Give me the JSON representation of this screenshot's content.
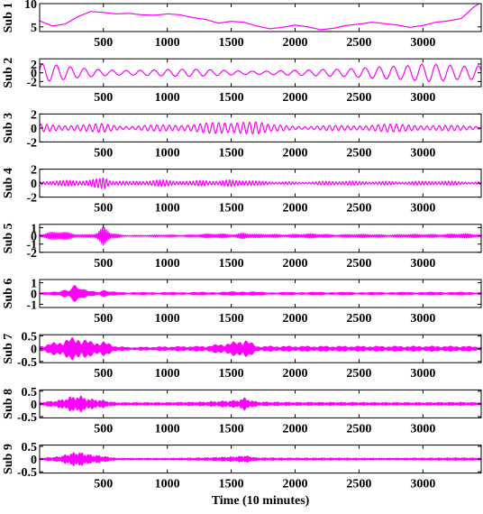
{
  "chart_data": {
    "type": "line",
    "title": "",
    "xlabel": "Time (10 minutes)",
    "line_color": "#ff00ff",
    "grid": false,
    "xlim": [
      1,
      3456
    ],
    "x_ticks": [
      500,
      1000,
      1500,
      2000,
      2500,
      3000
    ],
    "x_tick_labels": [
      "500",
      "1000",
      "1500",
      "2000",
      "2500",
      "3000"
    ],
    "panels": [
      {
        "ylabel": "Sub 1",
        "ylim": [
          4,
          10
        ],
        "y_ticks": [
          5,
          10
        ],
        "y_tick_labels": [
          "5",
          "10"
        ],
        "signal": {
          "kind": "trend",
          "x": [
            1,
            100,
            200,
            300,
            400,
            500,
            600,
            700,
            800,
            900,
            1000,
            1100,
            1200,
            1300,
            1400,
            1500,
            1600,
            1700,
            1800,
            1900,
            2000,
            2100,
            2200,
            2300,
            2400,
            2500,
            2600,
            2700,
            2800,
            2900,
            3000,
            3100,
            3200,
            3300,
            3400,
            3456
          ],
          "y": [
            6.3,
            5.2,
            5.6,
            7.2,
            8.3,
            8.1,
            7.8,
            7.9,
            7.6,
            7.5,
            7.8,
            7.6,
            7.0,
            6.6,
            5.8,
            6.2,
            6.0,
            5.2,
            4.6,
            4.9,
            5.4,
            5.0,
            4.4,
            4.7,
            5.3,
            5.6,
            6.0,
            5.7,
            5.4,
            4.9,
            5.3,
            6.0,
            6.3,
            6.8,
            9.3,
            10.3
          ]
        }
      },
      {
        "ylabel": "Sub 2",
        "ylim": [
          -3.2,
          3.2
        ],
        "y_ticks": [
          -2,
          0,
          2
        ],
        "y_tick_labels": [
          "-2",
          "0",
          "2"
        ],
        "signal": {
          "kind": "osc",
          "period": 110,
          "x": [
            1,
            300,
            600,
            900,
            1200,
            1500,
            1800,
            2100,
            2400,
            2700,
            3000,
            3300,
            3456
          ],
          "amp": [
            2.2,
            1.5,
            1.3,
            1.3,
            1.3,
            1.2,
            1.0,
            0.8,
            1.0,
            2.2,
            2.6,
            1.6,
            2.0
          ]
        }
      },
      {
        "ylabel": "Sub 3",
        "ylim": [
          -2,
          2
        ],
        "y_ticks": [
          -2,
          0,
          2
        ],
        "y_tick_labels": [
          "-2",
          "0",
          "2"
        ],
        "signal": {
          "kind": "osc",
          "period": 48,
          "x": [
            1,
            200,
            400,
            500,
            700,
            1000,
            1300,
            1500,
            1600,
            1700,
            1800,
            2100,
            2400,
            2700,
            3000,
            3300,
            3456
          ],
          "amp": [
            0.6,
            0.5,
            0.6,
            0.9,
            0.6,
            0.7,
            0.8,
            0.8,
            1.4,
            1.3,
            0.6,
            0.6,
            0.5,
            0.6,
            0.5,
            0.5,
            0.6
          ]
        }
      },
      {
        "ylabel": "Sub 4",
        "ylim": [
          -2,
          2
        ],
        "y_ticks": [
          -2,
          0,
          2
        ],
        "y_tick_labels": [
          "-2",
          "0",
          "2"
        ],
        "signal": {
          "kind": "osc",
          "period": 26,
          "x": [
            1,
            200,
            380,
            470,
            510,
            560,
            700,
            1000,
            1200,
            1300,
            1400,
            1500,
            1700,
            2000,
            2300,
            2500,
            2700,
            3000,
            3300,
            3456
          ],
          "amp": [
            0.3,
            0.4,
            0.6,
            1.0,
            1.6,
            0.8,
            0.3,
            0.5,
            0.4,
            1.0,
            0.4,
            0.6,
            0.3,
            0.3,
            0.3,
            0.3,
            0.4,
            0.3,
            0.3,
            0.3
          ]
        }
      },
      {
        "ylabel": "Sub 5",
        "ylim": [
          -2,
          1.4
        ],
        "y_ticks": [
          -2,
          -1,
          0,
          1
        ],
        "y_tick_labels": [
          "-2",
          "-1",
          "0",
          "1"
        ],
        "signal": {
          "kind": "osc",
          "period": 14,
          "x": [
            1,
            150,
            350,
            450,
            500,
            560,
            650,
            900,
            1200,
            1400,
            1500,
            1600,
            1700,
            2000,
            2500,
            3000,
            3100,
            3300,
            3456
          ],
          "amp": [
            0.3,
            0.6,
            0.2,
            0.5,
            1.2,
            0.4,
            0.1,
            0.1,
            0.2,
            0.3,
            0.3,
            0.5,
            0.2,
            0.3,
            0.2,
            0.2,
            0.3,
            0.3,
            0.2
          ]
        }
      },
      {
        "ylabel": "Sub 6",
        "ylim": [
          -1.3,
          1.3
        ],
        "y_ticks": [
          -1,
          0,
          1
        ],
        "y_tick_labels": [
          "-1",
          "0",
          "1"
        ],
        "signal": {
          "kind": "osc",
          "period": 8,
          "x": [
            1,
            150,
            230,
            280,
            330,
            450,
            500,
            560,
            700,
            1000,
            1400,
            1600,
            1800,
            2200,
            2600,
            3000,
            3300,
            3456
          ],
          "amp": [
            0.1,
            0.15,
            0.6,
            1.1,
            0.4,
            0.2,
            0.4,
            0.15,
            0.1,
            0.1,
            0.12,
            0.2,
            0.1,
            0.12,
            0.1,
            0.12,
            0.12,
            0.1
          ]
        }
      },
      {
        "ylabel": "Sub 7",
        "ylim": [
          -0.55,
          0.55
        ],
        "y_ticks": [
          -0.5,
          0,
          0.5
        ],
        "y_tick_labels": [
          "-0.5",
          "0",
          "0.5"
        ],
        "signal": {
          "kind": "osc",
          "period": 5,
          "x": [
            1,
            150,
            250,
            300,
            400,
            500,
            600,
            700,
            1000,
            1300,
            1550,
            1600,
            1700,
            2000,
            2300,
            2600,
            3000,
            3300,
            3456
          ],
          "amp": [
            0.1,
            0.3,
            0.45,
            0.5,
            0.3,
            0.3,
            0.1,
            0.05,
            0.08,
            0.1,
            0.3,
            0.45,
            0.1,
            0.1,
            0.1,
            0.1,
            0.1,
            0.1,
            0.08
          ]
        }
      },
      {
        "ylabel": "Sub 8",
        "ylim": [
          -0.55,
          0.55
        ],
        "y_ticks": [
          -0.5,
          0,
          0.5
        ],
        "y_tick_labels": [
          "-0.5",
          "0",
          "0.5"
        ],
        "signal": {
          "kind": "osc",
          "period": 3,
          "x": [
            1,
            150,
            250,
            300,
            400,
            500,
            600,
            1000,
            1300,
            1550,
            1600,
            1700,
            2000,
            2400,
            2700,
            3000,
            3300,
            3456
          ],
          "amp": [
            0.05,
            0.15,
            0.3,
            0.35,
            0.2,
            0.15,
            0.05,
            0.05,
            0.08,
            0.15,
            0.25,
            0.08,
            0.06,
            0.06,
            0.05,
            0.05,
            0.06,
            0.05
          ]
        }
      },
      {
        "ylabel": "Sub 9",
        "ylim": [
          -0.55,
          0.55
        ],
        "y_ticks": [
          -0.5,
          0,
          0.5
        ],
        "y_tick_labels": [
          "-0.5",
          "0",
          "0.5"
        ],
        "signal": {
          "kind": "osc",
          "period": 2.3,
          "x": [
            1,
            150,
            250,
            300,
            400,
            500,
            600,
            1000,
            1300,
            1550,
            1600,
            1700,
            2000,
            2400,
            2700,
            3000,
            3300,
            3456
          ],
          "amp": [
            0.03,
            0.1,
            0.25,
            0.3,
            0.18,
            0.12,
            0.03,
            0.03,
            0.05,
            0.1,
            0.15,
            0.05,
            0.04,
            0.04,
            0.03,
            0.04,
            0.05,
            0.04
          ]
        }
      }
    ]
  }
}
